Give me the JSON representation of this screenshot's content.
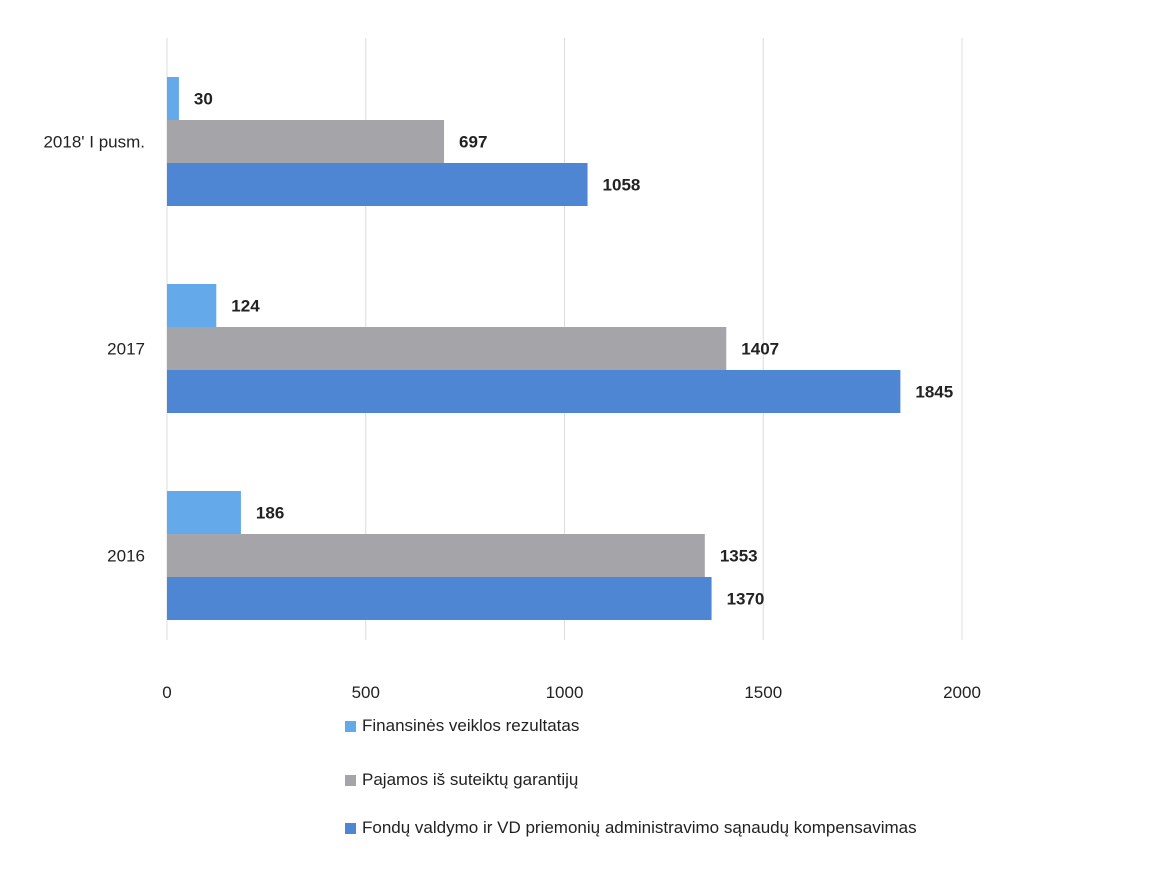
{
  "chart_data": {
    "type": "bar",
    "orientation": "horizontal",
    "categories": [
      "2018' I pusm.",
      "2017",
      "2016"
    ],
    "series": [
      {
        "name": "Finansinės veiklos rezultatas",
        "values": [
          30,
          124,
          186
        ],
        "color": "#64aaea"
      },
      {
        "name": "Pajamos iš suteiktų garantijų",
        "values": [
          697,
          1407,
          1353
        ],
        "color": "#a5a5a9"
      },
      {
        "name": "Fondų valdymo ir VD priemonių administravimo sąnaudų kompensavimas",
        "values": [
          1058,
          1845,
          1370
        ],
        "color": "#4f86d4"
      }
    ],
    "xlim": [
      0,
      2000
    ],
    "xticks": [
      "0",
      "500",
      "1000",
      "1500",
      "2000"
    ],
    "grid": true,
    "legend_position": "bottom",
    "title": "",
    "xlabel": "",
    "ylabel": ""
  }
}
